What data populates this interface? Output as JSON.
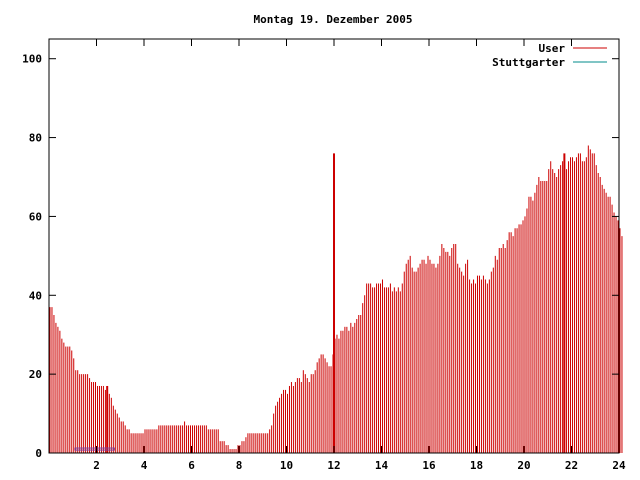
{
  "chart_data": {
    "type": "bar",
    "title": "Montag 19. Dezember 2005",
    "xlabel": "",
    "ylabel": "",
    "xlim": [
      0,
      24
    ],
    "ylim": [
      0,
      105
    ],
    "x_ticks": [
      2,
      4,
      6,
      8,
      10,
      12,
      14,
      16,
      18,
      20,
      22,
      24
    ],
    "y_ticks": [
      0,
      20,
      40,
      60,
      80,
      100
    ],
    "grid": false,
    "legend_position": "top-right",
    "bar_step_hours": 0.0833333,
    "series": [
      {
        "name": "User",
        "color": "#cc0000",
        "values": [
          37,
          37,
          35,
          33,
          32,
          31,
          29,
          28,
          27,
          27,
          27,
          26,
          24,
          21,
          21,
          20,
          20,
          20,
          20,
          20,
          19,
          18,
          18,
          18,
          17,
          17,
          17,
          17,
          16,
          17,
          15,
          14,
          12,
          11,
          10,
          9,
          8,
          8,
          7,
          6,
          6,
          5,
          5,
          5,
          5,
          5,
          5,
          5,
          6,
          6,
          6,
          6,
          6,
          6,
          6,
          7,
          7,
          7,
          7,
          7,
          7,
          7,
          7,
          7,
          7,
          7,
          7,
          7,
          8,
          7,
          7,
          7,
          7,
          7,
          7,
          7,
          7,
          7,
          7,
          7,
          6,
          6,
          6,
          6,
          6,
          6,
          3,
          3,
          3,
          2,
          2,
          1,
          1,
          1,
          1,
          2,
          2,
          3,
          3,
          4,
          5,
          5,
          5,
          5,
          5,
          5,
          5,
          5,
          5,
          5,
          5,
          6,
          7,
          10,
          12,
          13,
          14,
          15,
          16,
          16,
          15,
          17,
          18,
          17,
          18,
          19,
          19,
          18,
          21,
          20,
          19,
          18,
          20,
          20,
          21,
          23,
          24,
          25,
          25,
          24,
          23,
          22,
          22,
          25,
          29,
          30,
          29,
          31,
          31,
          32,
          32,
          31,
          33,
          32,
          33,
          34,
          35,
          35,
          38,
          40,
          43,
          43,
          43,
          42,
          42,
          43,
          43,
          43,
          44,
          42,
          42,
          42,
          43,
          41,
          42,
          41,
          42,
          41,
          43,
          46,
          48,
          49,
          50,
          47,
          46,
          46,
          47,
          48,
          49,
          49,
          48,
          50,
          49,
          48,
          48,
          47,
          48,
          50,
          53,
          52,
          51,
          51,
          50,
          52,
          53,
          53,
          48,
          47,
          46,
          45,
          48,
          49,
          44,
          43,
          44,
          43,
          45,
          45,
          44,
          45,
          44,
          43,
          44,
          46,
          47,
          50,
          49,
          52,
          52,
          53,
          52,
          54,
          56,
          56,
          55,
          57,
          57,
          58,
          58,
          59,
          60,
          62,
          65,
          65,
          64,
          66,
          68,
          70,
          69,
          69,
          69,
          69,
          72,
          74,
          72,
          71,
          70,
          72,
          73,
          74,
          73,
          72,
          74,
          75,
          75,
          74,
          75,
          76,
          76,
          74,
          74,
          75,
          78,
          77,
          76,
          76,
          73,
          71,
          70,
          68,
          67,
          66,
          65,
          65,
          63,
          61,
          60,
          59,
          57,
          55
        ]
      },
      {
        "name": "Stuttgarter",
        "color": "#008b8b",
        "values": []
      }
    ],
    "annotations": [
      {
        "x": 12.0,
        "color": "#cc0000"
      },
      {
        "x": 21.7,
        "color": "#cc0000"
      },
      {
        "x": 2.45,
        "color": "#cc0000"
      }
    ],
    "small_bar": {
      "x_start": 1.1,
      "x_end": 2.75,
      "y": 1,
      "color": "#7b3fa0"
    }
  }
}
